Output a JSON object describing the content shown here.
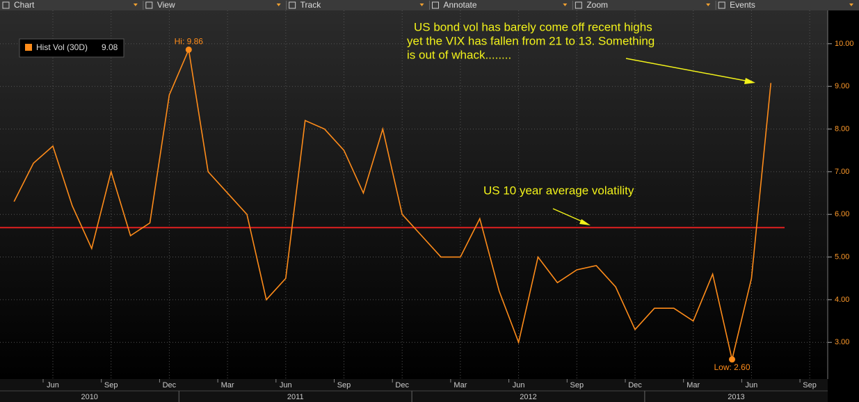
{
  "toolbar": [
    "Chart",
    "View",
    "Track",
    "Annotate",
    "Zoom",
    "Events"
  ],
  "chart_data": {
    "type": "line",
    "legend": {
      "name": "Hist Vol (30D)",
      "last_value": 9.08
    },
    "series": [
      {
        "name": "Hist Vol (30D)",
        "color": "#ff8c1a",
        "x": [
          "2010-04",
          "2010-05",
          "2010-06",
          "2010-07",
          "2010-08",
          "2010-09",
          "2010-10",
          "2010-11",
          "2010-12",
          "2011-01",
          "2011-02",
          "2011-03",
          "2011-04",
          "2011-05",
          "2011-06",
          "2011-07",
          "2011-08",
          "2011-09",
          "2011-10",
          "2011-11",
          "2011-12",
          "2012-01",
          "2012-02",
          "2012-03",
          "2012-04",
          "2012-05",
          "2012-06",
          "2012-07",
          "2012-08",
          "2012-09",
          "2012-10",
          "2012-11",
          "2012-12",
          "2013-01",
          "2013-02",
          "2013-03",
          "2013-04",
          "2013-05",
          "2013-06",
          "2013-07"
        ],
        "values": [
          6.3,
          7.2,
          7.6,
          6.2,
          5.2,
          7.0,
          5.5,
          5.8,
          8.8,
          9.86,
          7.0,
          6.5,
          6.0,
          4.0,
          4.5,
          8.2,
          8.0,
          7.5,
          6.5,
          8.0,
          6.0,
          5.5,
          5.0,
          5.0,
          5.9,
          4.2,
          3.0,
          5.0,
          4.4,
          4.7,
          4.8,
          4.3,
          3.3,
          3.8,
          3.8,
          3.5,
          4.6,
          2.6,
          4.5,
          9.08
        ]
      }
    ],
    "reference_line": {
      "value": 5.69,
      "color": "#e02020"
    },
    "extremes": [
      {
        "x": "2011-01",
        "value": 9.86,
        "label": "Hi: 9.86"
      },
      {
        "x": "2013-05",
        "value": 2.6,
        "label": "Low: 2.60"
      }
    ],
    "annotations": [
      "US bond vol has barely come off recent highs",
      "yet the VIX has fallen from 21 to 13. Something",
      "is out of whack........",
      "US 10 year average volatility"
    ],
    "ylim": [
      2.14,
      10.78
    ],
    "yticks": [
      {
        "value": 3,
        "label": "3.00"
      },
      {
        "value": 4,
        "label": "4.00"
      },
      {
        "value": 5,
        "label": "5.00"
      },
      {
        "value": 6,
        "label": "6.00"
      },
      {
        "value": 7,
        "label": "7.00"
      },
      {
        "value": 8,
        "label": "8.00"
      },
      {
        "value": 9,
        "label": "9.00"
      },
      {
        "value": 10,
        "label": "10.00"
      }
    ],
    "xticks": [
      {
        "value": "2010-06",
        "label": "Jun"
      },
      {
        "value": "2010-09",
        "label": "Sep"
      },
      {
        "value": "2010-12",
        "label": "Dec"
      },
      {
        "value": "2011-03",
        "label": "Mar"
      },
      {
        "value": "2011-06",
        "label": "Jun"
      },
      {
        "value": "2011-09",
        "label": "Sep"
      },
      {
        "value": "2011-12",
        "label": "Dec"
      },
      {
        "value": "2012-03",
        "label": "Mar"
      },
      {
        "value": "2012-06",
        "label": "Jun"
      },
      {
        "value": "2012-09",
        "label": "Sep"
      },
      {
        "value": "2012-12",
        "label": "Dec"
      },
      {
        "value": "2013-03",
        "label": "Mar"
      },
      {
        "value": "2013-06",
        "label": "Jun"
      },
      {
        "value": "2013-09",
        "label": "Sep"
      }
    ],
    "years": [
      "2010",
      "2011",
      "2012",
      "2013"
    ],
    "grid": true
  }
}
